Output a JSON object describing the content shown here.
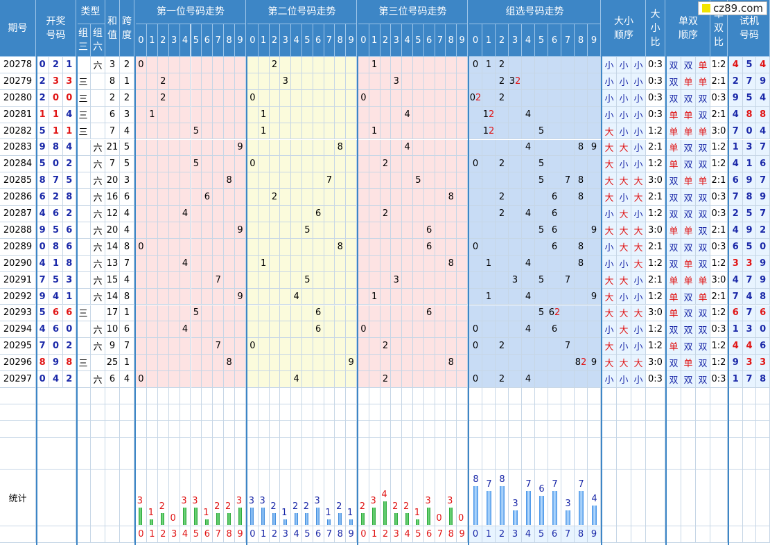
{
  "brand": "cz89.com",
  "headers": {
    "period": "期号",
    "draw": "开奖\n号码",
    "type": "类型",
    "type_sub": [
      "组\n三",
      "组\n六"
    ],
    "sum": "和\n值",
    "span": "跨\n度",
    "pos1": "第一位号码走势",
    "pos2": "第二位号码走势",
    "pos3": "第三位号码走势",
    "group": "组选号码走势",
    "size_order": "大小\n顺序",
    "size_ratio": "大\n小\n比",
    "odd_order": "单双\n顺序",
    "odd_ratio": "单\n双\n比",
    "test": "试机\n号码",
    "digits": [
      "0",
      "1",
      "2",
      "3",
      "4",
      "5",
      "6",
      "7",
      "8",
      "9"
    ]
  },
  "rows": [
    {
      "period": "20278",
      "draw": [
        "0",
        "2",
        "1"
      ],
      "draw_red": [
        false,
        false,
        false
      ],
      "type": "六",
      "sum": "3",
      "span": "2",
      "p1": [
        0
      ],
      "p2": [
        2
      ],
      "p3": [
        1
      ],
      "grp": [
        {
          "d": 0,
          "t": "0"
        },
        {
          "d": 1,
          "t": "1"
        },
        {
          "d": 2,
          "t": "2"
        }
      ],
      "size": [
        "小",
        "小",
        "小"
      ],
      "sr": "0:3",
      "odd": [
        "双",
        "双",
        "单"
      ],
      "or": "1:2",
      "test": [
        "4",
        "5",
        "4"
      ],
      "test_red": [
        true,
        false,
        true
      ]
    },
    {
      "period": "20279",
      "draw": [
        "2",
        "3",
        "3"
      ],
      "draw_red": [
        false,
        true,
        true
      ],
      "type": "三",
      "sum": "8",
      "span": "1",
      "p1": [
        2
      ],
      "p2": [
        3
      ],
      "p3": [
        3
      ],
      "grp": [
        {
          "d": 2,
          "t": "2"
        },
        {
          "d": 3,
          "t": "32"
        }
      ],
      "size": [
        "小",
        "小",
        "小"
      ],
      "sr": "0:3",
      "odd": [
        "双",
        "单",
        "单"
      ],
      "or": "2:1",
      "test": [
        "2",
        "7",
        "9"
      ],
      "test_red": [
        false,
        false,
        false
      ]
    },
    {
      "period": "20280",
      "draw": [
        "2",
        "0",
        "0"
      ],
      "draw_red": [
        false,
        true,
        true
      ],
      "type": "三",
      "sum": "2",
      "span": "2",
      "p1": [
        2
      ],
      "p2": [
        0
      ],
      "p3": [
        0
      ],
      "grp": [
        {
          "d": 0,
          "t": "02"
        },
        {
          "d": 2,
          "t": "2"
        }
      ],
      "size": [
        "小",
        "小",
        "小"
      ],
      "sr": "0:3",
      "odd": [
        "双",
        "双",
        "双"
      ],
      "or": "0:3",
      "test": [
        "9",
        "5",
        "4"
      ],
      "test_red": [
        false,
        false,
        false
      ]
    },
    {
      "period": "20281",
      "draw": [
        "1",
        "1",
        "4"
      ],
      "draw_red": [
        true,
        true,
        false
      ],
      "type": "三",
      "sum": "6",
      "span": "3",
      "p1": [
        1
      ],
      "p2": [
        1
      ],
      "p3": [
        4
      ],
      "grp": [
        {
          "d": 1,
          "t": "12"
        },
        {
          "d": 4,
          "t": "4"
        }
      ],
      "size": [
        "小",
        "小",
        "小"
      ],
      "sr": "0:3",
      "odd": [
        "单",
        "单",
        "双"
      ],
      "or": "2:1",
      "test": [
        "4",
        "8",
        "8"
      ],
      "test_red": [
        false,
        true,
        true
      ]
    },
    {
      "period": "20282",
      "draw": [
        "5",
        "1",
        "1"
      ],
      "draw_red": [
        false,
        true,
        true
      ],
      "type": "三",
      "sum": "7",
      "span": "4",
      "p1": [
        5
      ],
      "p2": [
        1
      ],
      "p3": [
        1
      ],
      "grp": [
        {
          "d": 1,
          "t": "12"
        },
        {
          "d": 5,
          "t": "5"
        }
      ],
      "size": [
        "大",
        "小",
        "小"
      ],
      "sr": "1:2",
      "odd": [
        "单",
        "单",
        "单"
      ],
      "or": "3:0",
      "test": [
        "7",
        "0",
        "4"
      ],
      "test_red": [
        false,
        false,
        false
      ]
    },
    {
      "period": "20283",
      "draw": [
        "9",
        "8",
        "4"
      ],
      "draw_red": [
        false,
        false,
        false
      ],
      "type": "六",
      "sum": "21",
      "span": "5",
      "p1": [
        9
      ],
      "p2": [
        8
      ],
      "p3": [
        4
      ],
      "grp": [
        {
          "d": 4,
          "t": "4"
        },
        {
          "d": 8,
          "t": "8"
        },
        {
          "d": 9,
          "t": "9"
        }
      ],
      "size": [
        "大",
        "大",
        "小"
      ],
      "sr": "2:1",
      "odd": [
        "单",
        "双",
        "双"
      ],
      "or": "1:2",
      "test": [
        "1",
        "3",
        "7"
      ],
      "test_red": [
        false,
        false,
        false
      ]
    },
    {
      "period": "20284",
      "draw": [
        "5",
        "0",
        "2"
      ],
      "draw_red": [
        false,
        false,
        false
      ],
      "type": "六",
      "sum": "7",
      "span": "5",
      "p1": [
        5
      ],
      "p2": [
        0
      ],
      "p3": [
        2
      ],
      "grp": [
        {
          "d": 0,
          "t": "0"
        },
        {
          "d": 2,
          "t": "2"
        },
        {
          "d": 5,
          "t": "5"
        }
      ],
      "size": [
        "大",
        "小",
        "小"
      ],
      "sr": "1:2",
      "odd": [
        "单",
        "双",
        "双"
      ],
      "or": "1:2",
      "test": [
        "4",
        "1",
        "6"
      ],
      "test_red": [
        false,
        false,
        false
      ]
    },
    {
      "period": "20285",
      "draw": [
        "8",
        "7",
        "5"
      ],
      "draw_red": [
        false,
        false,
        false
      ],
      "type": "六",
      "sum": "20",
      "span": "3",
      "p1": [
        8
      ],
      "p2": [
        7
      ],
      "p3": [
        5
      ],
      "grp": [
        {
          "d": 5,
          "t": "5"
        },
        {
          "d": 7,
          "t": "7"
        },
        {
          "d": 8,
          "t": "8"
        }
      ],
      "size": [
        "大",
        "大",
        "大"
      ],
      "sr": "3:0",
      "odd": [
        "双",
        "单",
        "单"
      ],
      "or": "2:1",
      "test": [
        "6",
        "9",
        "7"
      ],
      "test_red": [
        false,
        false,
        false
      ]
    },
    {
      "period": "20286",
      "draw": [
        "6",
        "2",
        "8"
      ],
      "draw_red": [
        false,
        false,
        false
      ],
      "type": "六",
      "sum": "16",
      "span": "6",
      "p1": [
        6
      ],
      "p2": [
        2
      ],
      "p3": [
        8
      ],
      "grp": [
        {
          "d": 2,
          "t": "2"
        },
        {
          "d": 6,
          "t": "6"
        },
        {
          "d": 8,
          "t": "8"
        }
      ],
      "size": [
        "大",
        "小",
        "大"
      ],
      "sr": "2:1",
      "odd": [
        "双",
        "双",
        "双"
      ],
      "or": "0:3",
      "test": [
        "7",
        "8",
        "9"
      ],
      "test_red": [
        false,
        false,
        false
      ]
    },
    {
      "period": "20287",
      "draw": [
        "4",
        "6",
        "2"
      ],
      "draw_red": [
        false,
        false,
        false
      ],
      "type": "六",
      "sum": "12",
      "span": "4",
      "p1": [
        4
      ],
      "p2": [
        6
      ],
      "p3": [
        2
      ],
      "grp": [
        {
          "d": 2,
          "t": "2"
        },
        {
          "d": 4,
          "t": "4"
        },
        {
          "d": 6,
          "t": "6"
        }
      ],
      "size": [
        "小",
        "大",
        "小"
      ],
      "sr": "1:2",
      "odd": [
        "双",
        "双",
        "双"
      ],
      "or": "0:3",
      "test": [
        "2",
        "5",
        "7"
      ],
      "test_red": [
        false,
        false,
        false
      ]
    },
    {
      "period": "20288",
      "draw": [
        "9",
        "5",
        "6"
      ],
      "draw_red": [
        false,
        false,
        false
      ],
      "type": "六",
      "sum": "20",
      "span": "4",
      "p1": [
        9
      ],
      "p2": [
        5
      ],
      "p3": [
        6
      ],
      "grp": [
        {
          "d": 5,
          "t": "5"
        },
        {
          "d": 6,
          "t": "6"
        },
        {
          "d": 9,
          "t": "9"
        }
      ],
      "size": [
        "大",
        "大",
        "大"
      ],
      "sr": "3:0",
      "odd": [
        "单",
        "单",
        "双"
      ],
      "or": "2:1",
      "test": [
        "4",
        "9",
        "2"
      ],
      "test_red": [
        false,
        false,
        false
      ]
    },
    {
      "period": "20289",
      "draw": [
        "0",
        "8",
        "6"
      ],
      "draw_red": [
        false,
        false,
        false
      ],
      "type": "六",
      "sum": "14",
      "span": "8",
      "p1": [
        0
      ],
      "p2": [
        8
      ],
      "p3": [
        6
      ],
      "grp": [
        {
          "d": 0,
          "t": "0"
        },
        {
          "d": 6,
          "t": "6"
        },
        {
          "d": 8,
          "t": "8"
        }
      ],
      "size": [
        "小",
        "大",
        "大"
      ],
      "sr": "2:1",
      "odd": [
        "双",
        "双",
        "双"
      ],
      "or": "0:3",
      "test": [
        "6",
        "5",
        "0"
      ],
      "test_red": [
        false,
        false,
        false
      ]
    },
    {
      "period": "20290",
      "draw": [
        "4",
        "1",
        "8"
      ],
      "draw_red": [
        false,
        false,
        false
      ],
      "type": "六",
      "sum": "13",
      "span": "7",
      "p1": [
        4
      ],
      "p2": [
        1
      ],
      "p3": [
        8
      ],
      "grp": [
        {
          "d": 1,
          "t": "1"
        },
        {
          "d": 4,
          "t": "4"
        },
        {
          "d": 8,
          "t": "8"
        }
      ],
      "size": [
        "小",
        "小",
        "大"
      ],
      "sr": "1:2",
      "odd": [
        "双",
        "单",
        "双"
      ],
      "or": "1:2",
      "test": [
        "3",
        "3",
        "9"
      ],
      "test_red": [
        true,
        true,
        false
      ]
    },
    {
      "period": "20291",
      "draw": [
        "7",
        "5",
        "3"
      ],
      "draw_red": [
        false,
        false,
        false
      ],
      "type": "六",
      "sum": "15",
      "span": "4",
      "p1": [
        7
      ],
      "p2": [
        5
      ],
      "p3": [
        3
      ],
      "grp": [
        {
          "d": 3,
          "t": "3"
        },
        {
          "d": 5,
          "t": "5"
        },
        {
          "d": 7,
          "t": "7"
        }
      ],
      "size": [
        "大",
        "大",
        "小"
      ],
      "sr": "2:1",
      "odd": [
        "单",
        "单",
        "单"
      ],
      "or": "3:0",
      "test": [
        "4",
        "7",
        "9"
      ],
      "test_red": [
        false,
        false,
        false
      ]
    },
    {
      "period": "20292",
      "draw": [
        "9",
        "4",
        "1"
      ],
      "draw_red": [
        false,
        false,
        false
      ],
      "type": "六",
      "sum": "14",
      "span": "8",
      "p1": [
        9
      ],
      "p2": [
        4
      ],
      "p3": [
        1
      ],
      "grp": [
        {
          "d": 1,
          "t": "1"
        },
        {
          "d": 4,
          "t": "4"
        },
        {
          "d": 9,
          "t": "9"
        }
      ],
      "size": [
        "大",
        "小",
        "小"
      ],
      "sr": "1:2",
      "odd": [
        "单",
        "双",
        "单"
      ],
      "or": "2:1",
      "test": [
        "7",
        "4",
        "8"
      ],
      "test_red": [
        false,
        false,
        false
      ]
    },
    {
      "period": "20293",
      "draw": [
        "5",
        "6",
        "6"
      ],
      "draw_red": [
        false,
        true,
        true
      ],
      "type": "三",
      "sum": "17",
      "span": "1",
      "p1": [
        5
      ],
      "p2": [
        6
      ],
      "p3": [
        6
      ],
      "grp": [
        {
          "d": 5,
          "t": "5"
        },
        {
          "d": 6,
          "t": "62"
        }
      ],
      "size": [
        "大",
        "大",
        "大"
      ],
      "sr": "3:0",
      "odd": [
        "单",
        "双",
        "双"
      ],
      "or": "1:2",
      "test": [
        "6",
        "7",
        "6"
      ],
      "test_red": [
        true,
        false,
        true
      ]
    },
    {
      "period": "20294",
      "draw": [
        "4",
        "6",
        "0"
      ],
      "draw_red": [
        false,
        false,
        false
      ],
      "type": "六",
      "sum": "10",
      "span": "6",
      "p1": [
        4
      ],
      "p2": [
        6
      ],
      "p3": [
        0
      ],
      "grp": [
        {
          "d": 0,
          "t": "0"
        },
        {
          "d": 4,
          "t": "4"
        },
        {
          "d": 6,
          "t": "6"
        }
      ],
      "size": [
        "小",
        "大",
        "小"
      ],
      "sr": "1:2",
      "odd": [
        "双",
        "双",
        "双"
      ],
      "or": "0:3",
      "test": [
        "1",
        "3",
        "0"
      ],
      "test_red": [
        false,
        false,
        false
      ]
    },
    {
      "period": "20295",
      "draw": [
        "7",
        "0",
        "2"
      ],
      "draw_red": [
        false,
        false,
        false
      ],
      "type": "六",
      "sum": "9",
      "span": "7",
      "p1": [
        7
      ],
      "p2": [
        0
      ],
      "p3": [
        2
      ],
      "grp": [
        {
          "d": 0,
          "t": "0"
        },
        {
          "d": 2,
          "t": "2"
        },
        {
          "d": 7,
          "t": "7"
        }
      ],
      "size": [
        "大",
        "小",
        "小"
      ],
      "sr": "1:2",
      "odd": [
        "单",
        "双",
        "双"
      ],
      "or": "1:2",
      "test": [
        "4",
        "4",
        "6"
      ],
      "test_red": [
        true,
        true,
        false
      ]
    },
    {
      "period": "20296",
      "draw": [
        "8",
        "9",
        "8"
      ],
      "draw_red": [
        true,
        false,
        true
      ],
      "type": "三",
      "sum": "25",
      "span": "1",
      "p1": [
        8
      ],
      "p2": [
        9
      ],
      "p3": [
        8
      ],
      "grp": [
        {
          "d": 8,
          "t": "82"
        },
        {
          "d": 9,
          "t": "9"
        }
      ],
      "size": [
        "大",
        "大",
        "大"
      ],
      "sr": "3:0",
      "odd": [
        "双",
        "单",
        "双"
      ],
      "or": "1:2",
      "test": [
        "9",
        "3",
        "3"
      ],
      "test_red": [
        false,
        true,
        true
      ]
    },
    {
      "period": "20297",
      "draw": [
        "0",
        "4",
        "2"
      ],
      "draw_red": [
        false,
        false,
        false
      ],
      "type": "六",
      "sum": "6",
      "span": "4",
      "p1": [
        0
      ],
      "p2": [
        4
      ],
      "p3": [
        2
      ],
      "grp": [
        {
          "d": 0,
          "t": "0"
        },
        {
          "d": 2,
          "t": "2"
        },
        {
          "d": 4,
          "t": "4"
        }
      ],
      "size": [
        "小",
        "小",
        "小"
      ],
      "sr": "0:3",
      "odd": [
        "双",
        "双",
        "双"
      ],
      "or": "0:3",
      "test": [
        "1",
        "7",
        "8"
      ],
      "test_red": [
        false,
        false,
        false
      ]
    }
  ],
  "stats_label": "统计",
  "chart_data": {
    "type": "bar",
    "categories": [
      "0",
      "1",
      "2",
      "3",
      "4",
      "5",
      "6",
      "7",
      "8",
      "9"
    ],
    "series": [
      {
        "group": "第一位号码走势",
        "values": [
          3,
          1,
          2,
          0,
          3,
          3,
          1,
          2,
          2,
          3
        ]
      },
      {
        "group": "第二位号码走势",
        "values": [
          3,
          3,
          2,
          1,
          2,
          2,
          3,
          1,
          2,
          1
        ]
      },
      {
        "group": "第三位号码走势",
        "values": [
          2,
          3,
          4,
          2,
          2,
          1,
          3,
          0,
          3,
          0
        ]
      },
      {
        "group": "组选号码走势",
        "values": [
          8,
          7,
          8,
          3,
          7,
          6,
          7,
          3,
          7,
          4
        ]
      }
    ],
    "colors": {
      "pos1": "#1c9c2c",
      "pos2": "#2f7fd6",
      "pos3": "#1c9c2c",
      "group": "#3f8fe6",
      "label_red": "#e01414",
      "label_blue": "#1a28a8"
    }
  }
}
